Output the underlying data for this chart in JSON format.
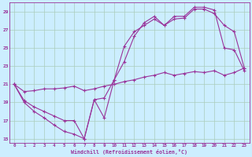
{
  "xlabel": "Windchill (Refroidissement éolien,°C)",
  "bg_color": "#cceeff",
  "grid_color": "#aaccbb",
  "line_color": "#993399",
  "x_min": 0,
  "x_max": 23,
  "y_min": 14.5,
  "y_max": 30.0,
  "yticks": [
    15,
    17,
    19,
    21,
    23,
    25,
    27,
    29
  ],
  "xticks": [
    0,
    1,
    2,
    3,
    4,
    5,
    6,
    7,
    8,
    9,
    10,
    11,
    12,
    13,
    14,
    15,
    16,
    17,
    18,
    19,
    20,
    21,
    22,
    23
  ],
  "line1_x": [
    0,
    1,
    2,
    3,
    4,
    5,
    6,
    7,
    8,
    9,
    10,
    11,
    12,
    13,
    14,
    15,
    16,
    17,
    18,
    19,
    20,
    21,
    22,
    23
  ],
  "line1_y": [
    21,
    19,
    18,
    17.3,
    16.5,
    15.8,
    15.5,
    15,
    19.3,
    17.3,
    21.5,
    23.5,
    26.3,
    27.8,
    28.5,
    27.5,
    28.5,
    28.5,
    29.5,
    29.5,
    29.2,
    25.0,
    24.8,
    22.5
  ],
  "line2_x": [
    0,
    1,
    2,
    3,
    4,
    5,
    6,
    7,
    8,
    9,
    10,
    11,
    12,
    13,
    14,
    15,
    16,
    17,
    18,
    19,
    20,
    21,
    22,
    23
  ],
  "line2_y": [
    21,
    19.2,
    18.5,
    18,
    17.5,
    17,
    17,
    15,
    19.3,
    19.5,
    21.5,
    25.2,
    26.8,
    27.5,
    28.2,
    27.5,
    28.2,
    28.3,
    29.3,
    29.3,
    28.8,
    27.5,
    26.8,
    22.8
  ],
  "line3_x": [
    0,
    1,
    2,
    3,
    4,
    5,
    6,
    7,
    8,
    9,
    10,
    11,
    12,
    13,
    14,
    15,
    16,
    17,
    18,
    19,
    20,
    21,
    22,
    23
  ],
  "line3_y": [
    21,
    20.2,
    20.3,
    20.5,
    20.5,
    20.6,
    20.8,
    20.3,
    20.5,
    20.8,
    21.0,
    21.3,
    21.5,
    21.8,
    22.0,
    22.3,
    22.0,
    22.2,
    22.4,
    22.3,
    22.5,
    22.0,
    22.3,
    22.8
  ]
}
